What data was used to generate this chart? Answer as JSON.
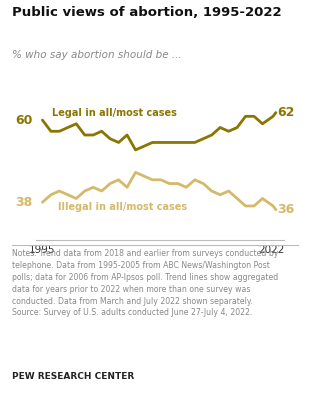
{
  "title": "Public views of abortion, 1995-2022",
  "subtitle": "% who say abortion should be ...",
  "legal_label": "Legal in all/most cases",
  "illegal_label": "Illegal in all/most cases",
  "legal_color": "#8B7500",
  "illegal_color": "#D4B96A",
  "legal_years": [
    1995,
    1996,
    1997,
    1998,
    1999,
    2000,
    2001,
    2002,
    2003,
    2004,
    2005,
    2006,
    2007,
    2008,
    2009,
    2010,
    2011,
    2012,
    2013,
    2014,
    2015,
    2016,
    2017,
    2018,
    2019,
    2020,
    2021,
    2022.25,
    2022.58
  ],
  "legal_values": [
    60,
    57,
    57,
    58,
    59,
    56,
    56,
    57,
    55,
    54,
    56,
    52,
    53,
    54,
    54,
    54,
    54,
    54,
    54,
    55,
    56,
    58,
    57,
    58,
    61,
    61,
    59,
    61,
    62
  ],
  "illegal_years": [
    1995,
    1996,
    1997,
    1998,
    1999,
    2000,
    2001,
    2002,
    2003,
    2004,
    2005,
    2006,
    2007,
    2008,
    2009,
    2010,
    2011,
    2012,
    2013,
    2014,
    2015,
    2016,
    2017,
    2018,
    2019,
    2020,
    2021,
    2022.25,
    2022.58
  ],
  "illegal_values": [
    38,
    40,
    41,
    40,
    39,
    41,
    42,
    41,
    43,
    44,
    42,
    46,
    45,
    44,
    44,
    43,
    43,
    42,
    44,
    43,
    41,
    40,
    41,
    39,
    37,
    37,
    39,
    37,
    36
  ],
  "xlim": [
    1994.2,
    2023.5
  ],
  "ylim": [
    28,
    72
  ],
  "left_label_legal": "60",
  "left_label_illegal": "38",
  "right_label_legal": "62",
  "right_label_illegal": "36",
  "notes_line1": "Notes: Trend data from 2018 and earlier from surveys conducted by",
  "notes_line2": "telephone. Data from 1995-2005 from ABC News/Washington Post",
  "notes_line3": "polls; data for 2006 from AP-Ipsos poll. Trend lines show aggregated",
  "notes_line4": "data for years prior to 2022 when more than one survey was",
  "notes_line5": "conducted. Data from March and July 2022 shown separately.",
  "notes_line6": "Source: Survey of U.S. adults conducted June 27-July 4, 2022.",
  "credit": "PEW RESEARCH CENTER",
  "bg_color": "#FFFFFF",
  "axis_color": "#BBBBBB",
  "text_color": "#333333",
  "note_color": "#888888"
}
